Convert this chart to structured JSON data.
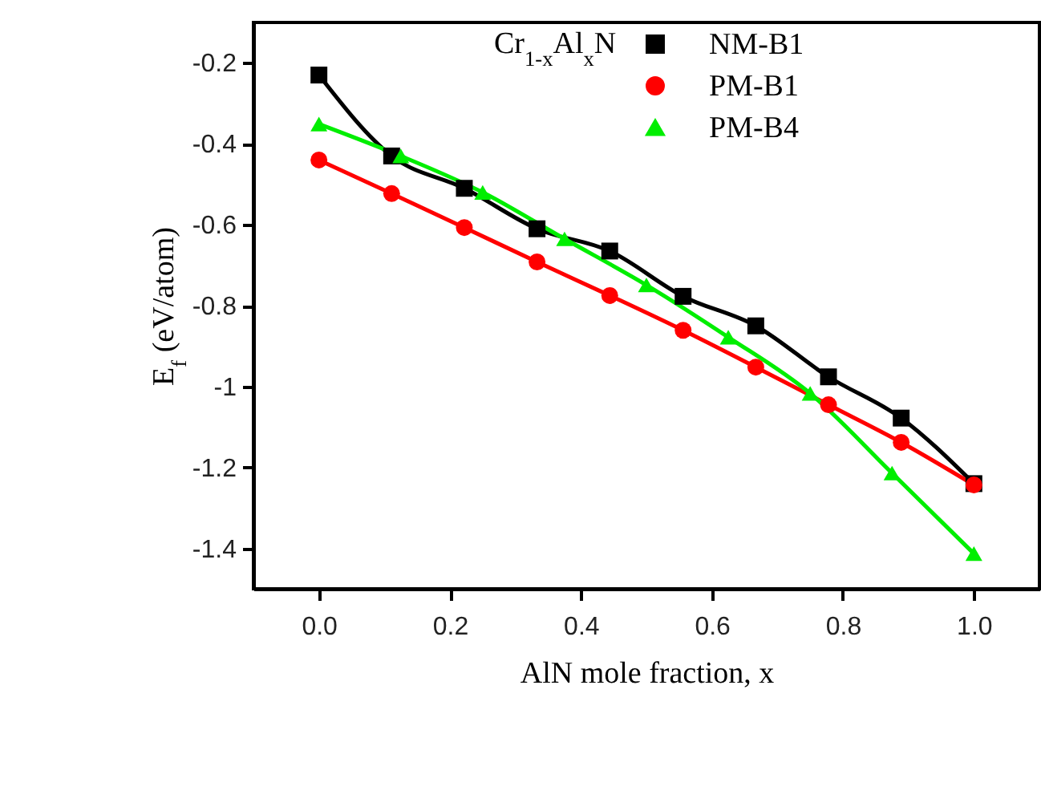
{
  "chart_data": {
    "type": "line",
    "xlabel": "AlN mole fraction, x",
    "ylabel": "E$_{f}$ (eV/atom)",
    "legend_title": "Cr$_{1-x}$Al$_{x}$N",
    "legend": "top",
    "line_style": "solid",
    "xlim": [
      -0.1,
      1.1
    ],
    "ylim": [
      -1.5,
      -0.1
    ],
    "xticks": [
      {
        "value": 0,
        "label": "0.0"
      },
      {
        "value": 0.2,
        "label": "0.2"
      },
      {
        "value": 0.4,
        "label": "0.4"
      },
      {
        "value": 0.6,
        "label": "0.6"
      },
      {
        "value": 0.8,
        "label": "0.8"
      },
      {
        "value": 1,
        "label": "1.0"
      }
    ],
    "yticks": [
      -0.2,
      -0.4,
      -0.6,
      -0.8,
      -1.0,
      -1.2,
      -1.4
    ],
    "series": [
      {
        "name": "NM-B1",
        "color": "#000000",
        "marker": "square",
        "x": [
          0,
          0.111,
          0.222,
          0.333,
          0.444,
          0.556,
          0.667,
          0.778,
          0.889,
          1.0
        ],
        "values": [
          -0.23,
          -0.43,
          -0.51,
          -0.61,
          -0.665,
          -0.777,
          -0.85,
          -0.976,
          -1.078,
          -1.24
        ]
      },
      {
        "name": "PM-B1",
        "color": "#ff0000",
        "marker": "circle",
        "x": [
          0,
          0.111,
          0.222,
          0.333,
          0.444,
          0.556,
          0.667,
          0.778,
          0.889,
          1.0
        ],
        "values": [
          -0.44,
          -0.523,
          -0.607,
          -0.692,
          -0.775,
          -0.861,
          -0.952,
          -1.045,
          -1.138,
          -1.243
        ]
      },
      {
        "name": "PM-B4",
        "color": "#00ee00",
        "marker": "triangle",
        "x": [
          0,
          0.125,
          0.25,
          0.375,
          0.5,
          0.625,
          0.75,
          0.875,
          1.0
        ],
        "values": [
          -0.351,
          -0.43,
          -0.52,
          -0.635,
          -0.749,
          -0.878,
          -1.017,
          -1.214,
          -1.413
        ]
      }
    ]
  }
}
